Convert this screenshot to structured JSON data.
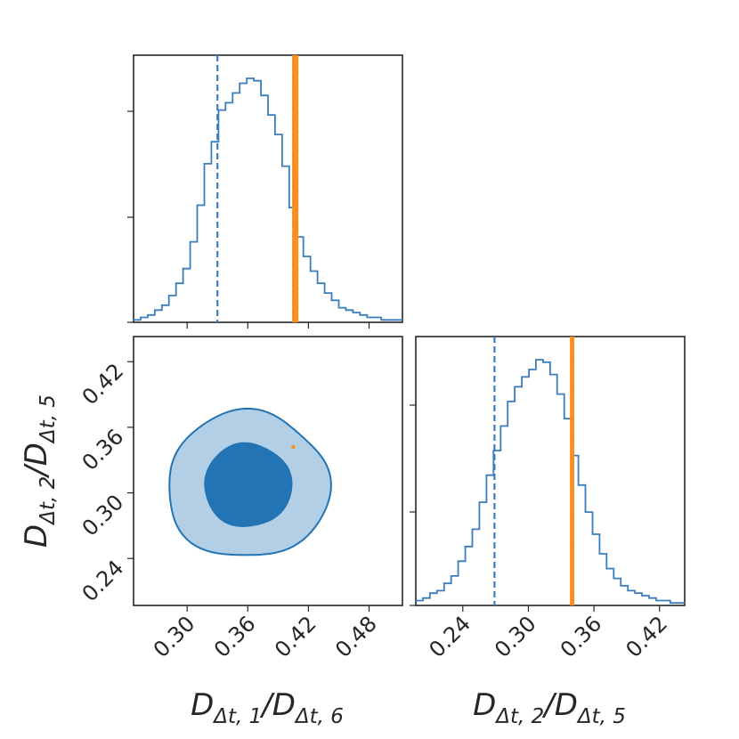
{
  "chart_data": {
    "type": "corner",
    "colors": {
      "posterior": "#3A7DBF",
      "contour_inner": "#2274B5",
      "contour_outer": "#B3CFE6",
      "truth": "#FF8C1A"
    },
    "parameters": [
      {
        "name": "D_dt1_over_D_dt6",
        "label": {
          "base": "D",
          "sub1": "Δt, 1",
          "sep": "/",
          "base2": "D",
          "sub2": "Δt, 6"
        },
        "range": [
          0.247,
          0.513
        ],
        "ticks": [
          "0.30",
          "0.36",
          "0.42",
          "0.48"
        ],
        "tick_values": [
          0.3,
          0.36,
          0.42,
          0.48
        ],
        "quantile_16": 0.33,
        "quantile_84": 0.405,
        "truth_values": [
          0.405,
          0.407,
          0.409
        ],
        "histogram": {
          "bin_edges": [
            0.247,
            0.254,
            0.261,
            0.268,
            0.275,
            0.282,
            0.289,
            0.296,
            0.303,
            0.31,
            0.317,
            0.324,
            0.331,
            0.338,
            0.345,
            0.352,
            0.359,
            0.366,
            0.373,
            0.38,
            0.387,
            0.394,
            0.401,
            0.408,
            0.415,
            0.422,
            0.429,
            0.436,
            0.443,
            0.45,
            0.457,
            0.464,
            0.471,
            0.478,
            0.485,
            0.492,
            0.499,
            0.506,
            0.513
          ],
          "counts": [
            0.01,
            0.02,
            0.03,
            0.05,
            0.07,
            0.11,
            0.16,
            0.22,
            0.33,
            0.48,
            0.65,
            0.74,
            0.87,
            0.9,
            0.94,
            0.98,
            1.0,
            0.99,
            0.93,
            0.85,
            0.77,
            0.64,
            0.47,
            0.35,
            0.27,
            0.21,
            0.16,
            0.12,
            0.09,
            0.06,
            0.05,
            0.04,
            0.03,
            0.02,
            0.02,
            0.01,
            0.01,
            0.01
          ]
        }
      },
      {
        "name": "D_dt2_over_D_dt5",
        "label": {
          "base": "D",
          "sub1": "Δt, 2",
          "sep": "/",
          "base2": "D",
          "sub2": "Δt, 5"
        },
        "range": [
          0.197,
          0.443
        ],
        "ticks": [
          "0.24",
          "0.30",
          "0.36",
          "0.42"
        ],
        "tick_values": [
          0.24,
          0.3,
          0.36,
          0.42
        ],
        "quantile_16": 0.269,
        "quantile_84": 0.341,
        "truth_values": [
          0.339,
          0.341
        ],
        "histogram": {
          "bin_edges": [
            0.197,
            0.2035,
            0.2099,
            0.2164,
            0.2229,
            0.2293,
            0.2358,
            0.2423,
            0.2487,
            0.2552,
            0.2617,
            0.2681,
            0.2746,
            0.2811,
            0.2875,
            0.294,
            0.3005,
            0.3069,
            0.3134,
            0.3199,
            0.3263,
            0.3328,
            0.3393,
            0.3457,
            0.3522,
            0.3587,
            0.3651,
            0.3716,
            0.3781,
            0.3845,
            0.391,
            0.3975,
            0.4039,
            0.4104,
            0.4169,
            0.4233,
            0.4298,
            0.4363,
            0.443
          ],
          "counts": [
            0.02,
            0.03,
            0.05,
            0.06,
            0.09,
            0.12,
            0.18,
            0.24,
            0.31,
            0.42,
            0.53,
            0.63,
            0.73,
            0.83,
            0.89,
            0.93,
            0.96,
            1.0,
            0.99,
            0.94,
            0.86,
            0.76,
            0.61,
            0.49,
            0.38,
            0.29,
            0.21,
            0.15,
            0.11,
            0.08,
            0.06,
            0.05,
            0.04,
            0.03,
            0.02,
            0.02,
            0.01,
            0.01
          ]
        }
      }
    ],
    "contours": {
      "levels": [
        "68%",
        "95%"
      ],
      "center": [
        0.36,
        0.307
      ],
      "inner": {
        "rx": 0.043,
        "ry": 0.038
      },
      "outer": {
        "rx": 0.08,
        "ry": 0.067
      }
    },
    "truth_point": [
      0.405,
      0.342
    ]
  }
}
